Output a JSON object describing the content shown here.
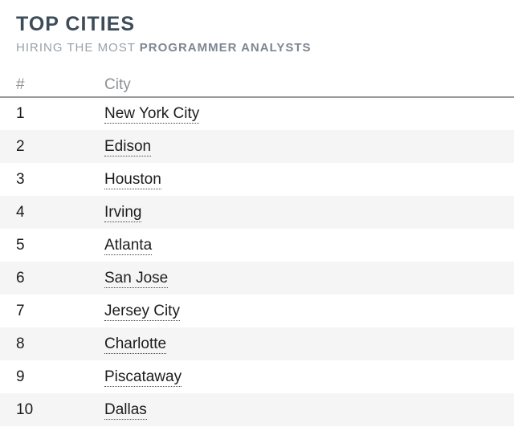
{
  "header": {
    "title": "TOP CITIES",
    "subtitle_regular": "HIRING THE MOST",
    "subtitle_bold": "PROGRAMMER ANALYSTS"
  },
  "table": {
    "columns": {
      "rank": "#",
      "city": "City"
    },
    "rows": [
      {
        "rank": "1",
        "city": "New York City"
      },
      {
        "rank": "2",
        "city": "Edison"
      },
      {
        "rank": "3",
        "city": "Houston"
      },
      {
        "rank": "4",
        "city": "Irving"
      },
      {
        "rank": "5",
        "city": "Atlanta"
      },
      {
        "rank": "6",
        "city": "San Jose"
      },
      {
        "rank": "7",
        "city": "Jersey City"
      },
      {
        "rank": "8",
        "city": "Charlotte"
      },
      {
        "rank": "9",
        "city": "Piscataway"
      },
      {
        "rank": "10",
        "city": "Dallas"
      }
    ]
  },
  "colors": {
    "title": "#3d4c59",
    "subtitle": "#98a1a7",
    "subtitle_bold": "#7e8790",
    "column_header_text": "#8e9196",
    "header_border": "#9a9a9a",
    "row_text": "#1c1c1c",
    "zebra_stripe": "#f5f5f6",
    "link_underline_dotted": "#444444",
    "background": "#ffffff"
  }
}
